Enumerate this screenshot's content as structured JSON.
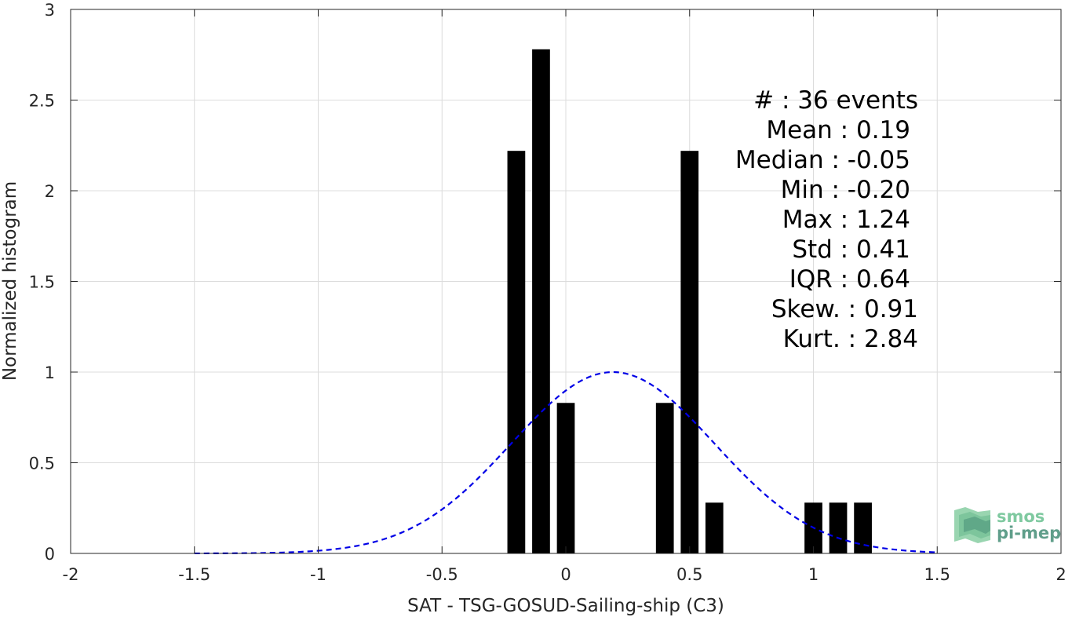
{
  "chart_data": {
    "type": "bar",
    "xlabel": "SAT - TSG-GOSUD-Sailing-ship (C3)",
    "ylabel": "Normalized histogram",
    "xlim": [
      -2,
      2
    ],
    "ylim": [
      0,
      3
    ],
    "grid": true,
    "xticks": [
      -2,
      -1.5,
      -1,
      -0.5,
      0,
      0.5,
      1,
      1.5,
      2
    ],
    "xtick_labels": [
      "-2",
      "-1.5",
      "-1",
      "-0.5",
      "0",
      "0.5",
      "1",
      "1.5",
      "2"
    ],
    "yticks": [
      0,
      0.5,
      1,
      1.5,
      2,
      2.5,
      3
    ],
    "ytick_labels": [
      "0",
      "0.5",
      "1",
      "1.5",
      "2",
      "2.5",
      "3"
    ],
    "bin_width": 0.1,
    "bars": [
      {
        "x": -0.2,
        "value": 2.22
      },
      {
        "x": -0.1,
        "value": 2.78
      },
      {
        "x": 0.0,
        "value": 0.83
      },
      {
        "x": 0.4,
        "value": 0.83
      },
      {
        "x": 0.5,
        "value": 2.22
      },
      {
        "x": 0.6,
        "value": 0.28
      },
      {
        "x": 1.0,
        "value": 0.28
      },
      {
        "x": 1.1,
        "value": 0.28
      },
      {
        "x": 1.2,
        "value": 0.28
      }
    ],
    "bar_color": "#000000",
    "fit_curve": {
      "type": "gaussian",
      "mean": 0.19,
      "std": 0.41,
      "peak": 1.0,
      "x_range": [
        -1.5,
        1.5
      ],
      "color": "#0000e6",
      "style": "dashed"
    },
    "stats": [
      {
        "label": "#  : 36 events"
      },
      {
        "label": "Mean : 0.19"
      },
      {
        "label": "Median : -0.05"
      },
      {
        "label": "Min : -0.20"
      },
      {
        "label": "Max : 1.24"
      },
      {
        "label": "Std : 0.41"
      },
      {
        "label": "IQR : 0.64"
      },
      {
        "label": "Skew. : 0.91"
      },
      {
        "label": "Kurt. : 2.84"
      }
    ]
  },
  "logo": {
    "line1": "smos",
    "line2": "pi-mep",
    "color1": "#7fc9a0",
    "color2": "#5f9e8a"
  }
}
